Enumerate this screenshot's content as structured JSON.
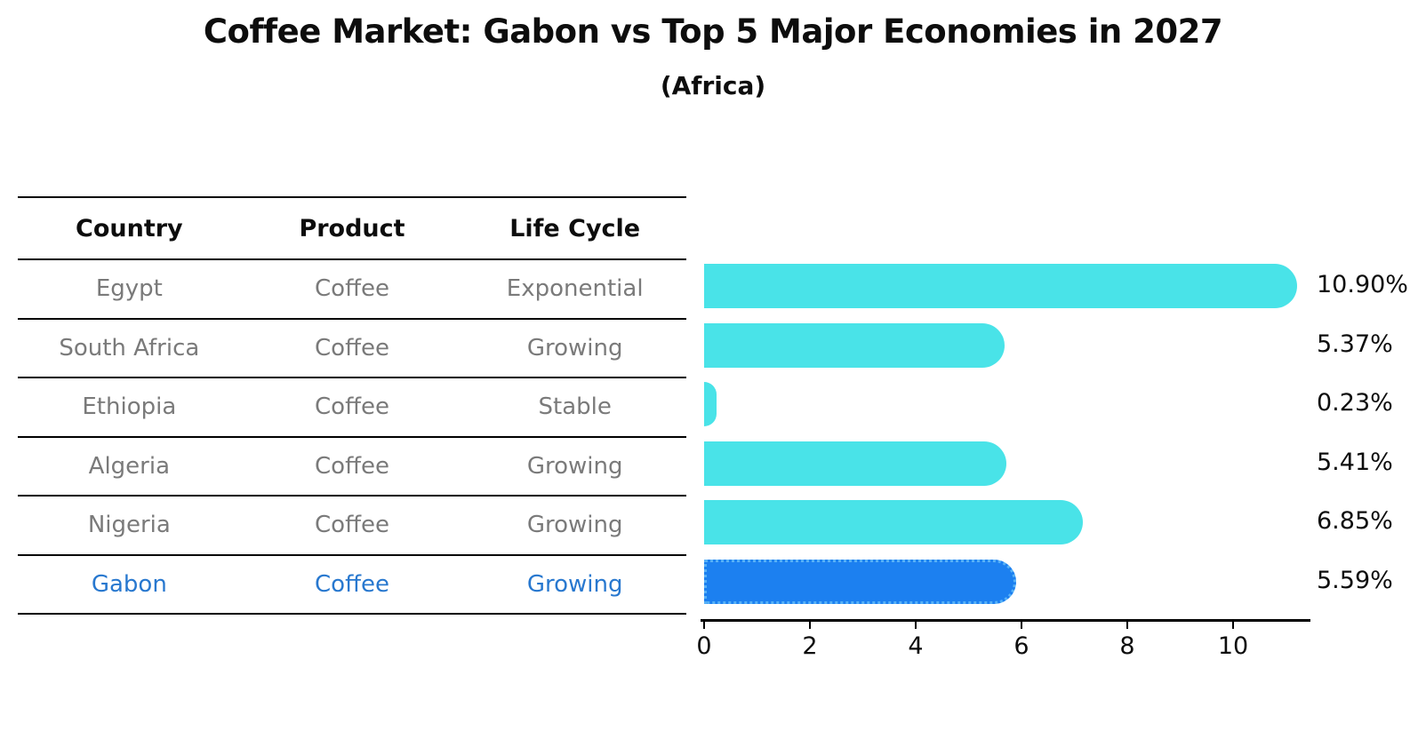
{
  "title": "Coffee Market: Gabon vs Top 5 Major Economies in 2027",
  "subtitle": "(Africa)",
  "table": {
    "headers": [
      "Country",
      "Product",
      "Life Cycle"
    ],
    "rows": [
      {
        "country": "Egypt",
        "product": "Coffee",
        "life_cycle": "Exponential",
        "highlight": false
      },
      {
        "country": "South Africa",
        "product": "Coffee",
        "life_cycle": "Growing",
        "highlight": false
      },
      {
        "country": "Ethiopia",
        "product": "Coffee",
        "life_cycle": "Stable",
        "highlight": false
      },
      {
        "country": "Algeria",
        "product": "Coffee",
        "life_cycle": "Growing",
        "highlight": false
      },
      {
        "country": "Nigeria",
        "product": "Coffee",
        "life_cycle": "Growing",
        "highlight": true
      }
    ],
    "highlight_row": {
      "country": "Gabon",
      "product": "Coffee",
      "life_cycle": "Growing"
    }
  },
  "chart_data": {
    "type": "bar",
    "orientation": "horizontal",
    "title": "Coffee Market: Gabon vs Top 5 Major Economies in 2027",
    "subtitle": "(Africa)",
    "categories": [
      "Egypt",
      "South Africa",
      "Ethiopia",
      "Algeria",
      "Nigeria",
      "Gabon"
    ],
    "values": [
      10.9,
      5.37,
      0.23,
      5.41,
      6.85,
      5.59
    ],
    "value_labels": [
      "10.90%",
      "5.37%",
      "0.23%",
      "5.41%",
      "6.85%",
      "5.59%"
    ],
    "highlight_index": 5,
    "xticks": [
      0,
      2,
      4,
      6,
      8,
      10
    ],
    "xtick_labels": [
      "0",
      "2",
      "4",
      "6",
      "8",
      "10"
    ],
    "xlim": [
      0,
      11.4
    ],
    "grid": false,
    "legend": "none",
    "bar_color": "#49e3e8",
    "highlight_bar_color": "#1c80f0",
    "highlight_text_color": "#2878cf",
    "table_text_color": "#7a7a7a",
    "axis_color": "#000000"
  }
}
